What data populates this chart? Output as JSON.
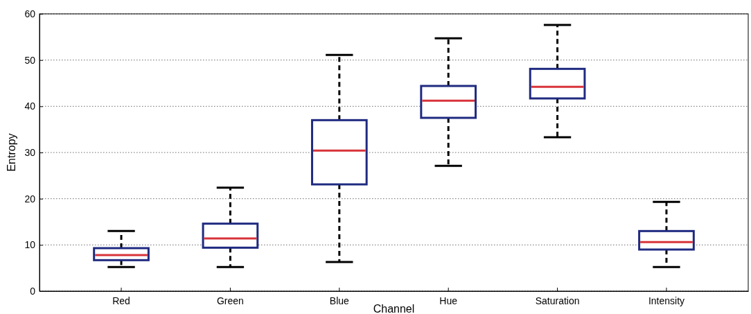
{
  "chart_data": {
    "type": "box",
    "xlabel": "Channel",
    "ylabel": "Entropy",
    "categories": [
      "Red",
      "Green",
      "Blue",
      "Hue",
      "Saturation",
      "Intensity"
    ],
    "ylim": [
      0,
      60
    ],
    "yticks": [
      0,
      10,
      20,
      30,
      40,
      50,
      60
    ],
    "grid": "y",
    "line_style": "dashed",
    "series": [
      {
        "color": "#1f2a80",
        "boxes": [
          {
            "low": 5.2,
            "q1": 6.7,
            "median": 7.8,
            "q3": 9.3,
            "high": 13
          },
          {
            "low": 5.2,
            "q1": 9.4,
            "median": 11.4,
            "q3": 14.6,
            "high": 22.4
          },
          {
            "low": 6.3,
            "q1": 23.1,
            "median": 30.4,
            "q3": 37,
            "high": 51.1
          },
          {
            "low": 27.1,
            "q1": 37.5,
            "median": 41.2,
            "q3": 44.4,
            "high": 54.7
          },
          {
            "low": 33.3,
            "q1": 41.7,
            "median": 44.2,
            "q3": 48.1,
            "high": 57.6
          },
          {
            "low": 5.2,
            "q1": 9,
            "median": 10.6,
            "q3": 13,
            "high": 19.3
          }
        ]
      }
    ]
  }
}
